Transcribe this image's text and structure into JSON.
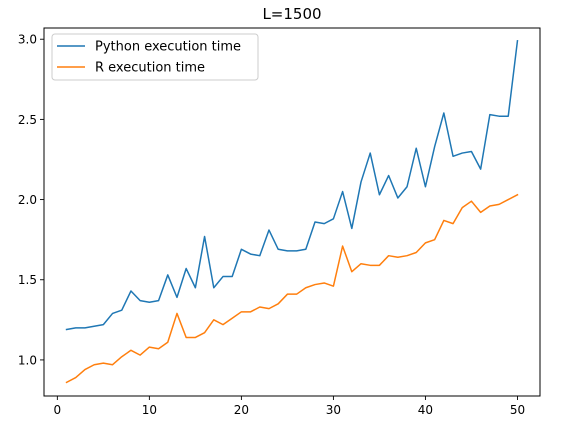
{
  "chart_data": {
    "type": "line",
    "title": "L=1500",
    "xlabel": "",
    "ylabel": "",
    "xlim": [
      -1.45,
      52.45
    ],
    "ylim": [
      0.775,
      3.07
    ],
    "xticks": [
      0,
      10,
      20,
      30,
      40,
      50
    ],
    "xtick_labels": [
      "0",
      "10",
      "20",
      "30",
      "40",
      "50"
    ],
    "yticks": [
      1.0,
      1.5,
      2.0,
      2.5,
      3.0
    ],
    "ytick_labels": [
      "1.0",
      "1.5",
      "2.0",
      "2.5",
      "3.0"
    ],
    "grid": false,
    "legend_position": "upper-left",
    "x": [
      1,
      2,
      3,
      4,
      5,
      6,
      7,
      8,
      9,
      10,
      11,
      12,
      13,
      14,
      15,
      16,
      17,
      18,
      19,
      20,
      21,
      22,
      23,
      24,
      25,
      26,
      27,
      28,
      29,
      30,
      31,
      32,
      33,
      34,
      35,
      36,
      37,
      38,
      39,
      40,
      41,
      42,
      43,
      44,
      45,
      46,
      47,
      48,
      49,
      50
    ],
    "series": [
      {
        "name": "Python execution time",
        "color": "#1f77b4",
        "values": [
          1.19,
          1.2,
          1.2,
          1.21,
          1.22,
          1.29,
          1.31,
          1.43,
          1.37,
          1.36,
          1.37,
          1.53,
          1.39,
          1.57,
          1.45,
          1.77,
          1.45,
          1.52,
          1.52,
          1.69,
          1.66,
          1.65,
          1.81,
          1.69,
          1.68,
          1.68,
          1.69,
          1.86,
          1.85,
          1.88,
          2.05,
          1.82,
          2.11,
          2.29,
          2.03,
          2.15,
          2.01,
          2.08,
          2.32,
          2.08,
          2.33,
          2.54,
          2.27,
          2.29,
          2.3,
          2.19,
          2.53,
          2.52,
          2.52,
          2.99
        ]
      },
      {
        "name": "R execution time",
        "color": "#ff7f0e",
        "values": [
          0.86,
          0.89,
          0.94,
          0.97,
          0.98,
          0.97,
          1.02,
          1.06,
          1.03,
          1.08,
          1.07,
          1.11,
          1.29,
          1.14,
          1.14,
          1.17,
          1.25,
          1.22,
          1.26,
          1.3,
          1.3,
          1.33,
          1.32,
          1.35,
          1.41,
          1.41,
          1.45,
          1.47,
          1.48,
          1.46,
          1.71,
          1.55,
          1.6,
          1.59,
          1.59,
          1.65,
          1.64,
          1.65,
          1.67,
          1.73,
          1.75,
          1.87,
          1.85,
          1.95,
          1.99,
          1.92,
          1.96,
          1.97,
          2.0,
          2.03
        ]
      }
    ]
  }
}
